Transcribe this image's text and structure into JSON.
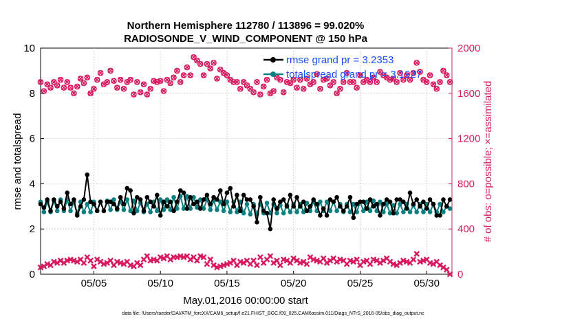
{
  "colors": {
    "rmse": "#000000",
    "spread": "#0b8080",
    "obs": "#d81b60",
    "legend_text": "#1a4dff",
    "axis": "#000000"
  },
  "chart_data": {
    "type": "line",
    "title_line1": "Northern Hemisphere 112780 / 113896 = 99.020%",
    "title_line2": "RADIOSONDE_V_WIND_COMPONENT @ 150 hPa",
    "xlabel": "May.01,2016 00:00:00 start",
    "ylabel_left": "rmse and totalspread",
    "ylabel_right": "# of obs: o=possible; ×=assimilated",
    "footnote": "data file: /Users/raeder/DAI/ATM_forcXX/CAM6_setup/f.e21.FHIST_BGC.f09_025.CAM6assim.011/Diags_NTrS_2016-05/obs_diag_output.nc",
    "xlim": [
      1.0,
      31.9
    ],
    "ylim_left": [
      0,
      10
    ],
    "ylim_right": [
      0,
      2000
    ],
    "x_ticks": [
      5,
      10,
      15,
      20,
      25,
      30
    ],
    "x_tick_labels": [
      "05/05",
      "05/10",
      "05/15",
      "05/20",
      "05/25",
      "05/30"
    ],
    "y_left_ticks": [
      0,
      2,
      4,
      6,
      8,
      10
    ],
    "y_left_tick_labels": [
      "0",
      "2",
      "4",
      "6",
      "8",
      "10"
    ],
    "y_right_ticks": [
      0,
      400,
      800,
      1200,
      1600,
      2000
    ],
    "y_right_tick_labels": [
      "0",
      "400",
      "800",
      "1200",
      "1600",
      "2000"
    ],
    "legend": {
      "rmse_label": "rmse grand pr = 3.2353",
      "spread_label": "totalspread grand pr = 3.1927",
      "placement": "top-right"
    },
    "x": [
      1.0,
      1.25,
      1.5,
      1.75,
      2.0,
      2.25,
      2.5,
      2.75,
      3.0,
      3.25,
      3.5,
      3.75,
      4.0,
      4.25,
      4.5,
      4.75,
      5.0,
      5.25,
      5.5,
      5.75,
      6.0,
      6.25,
      6.5,
      6.75,
      7.0,
      7.25,
      7.5,
      7.75,
      8.0,
      8.25,
      8.5,
      8.75,
      9.0,
      9.25,
      9.5,
      9.75,
      10.0,
      10.25,
      10.5,
      10.75,
      11.0,
      11.25,
      11.5,
      11.75,
      12.0,
      12.25,
      12.5,
      12.75,
      13.0,
      13.25,
      13.5,
      13.75,
      14.0,
      14.25,
      14.5,
      14.75,
      15.0,
      15.25,
      15.5,
      15.75,
      16.0,
      16.25,
      16.5,
      16.75,
      17.0,
      17.25,
      17.5,
      17.75,
      18.0,
      18.25,
      18.5,
      18.75,
      19.0,
      19.25,
      19.5,
      19.75,
      20.0,
      20.25,
      20.5,
      20.75,
      21.0,
      21.25,
      21.5,
      21.75,
      22.0,
      22.25,
      22.5,
      22.75,
      23.0,
      23.25,
      23.5,
      23.75,
      24.0,
      24.25,
      24.5,
      24.75,
      25.0,
      25.25,
      25.5,
      25.75,
      26.0,
      26.25,
      26.5,
      26.75,
      27.0,
      27.25,
      27.5,
      27.75,
      28.0,
      28.25,
      28.5,
      28.75,
      29.0,
      29.25,
      29.5,
      29.75,
      30.0,
      30.25,
      30.5,
      30.75,
      31.0,
      31.25,
      31.5,
      31.75
    ],
    "series": [
      {
        "name": "rmse",
        "values": [
          3.1,
          2.95,
          3.3,
          2.8,
          3.3,
          3.0,
          3.2,
          2.9,
          3.6,
          3.1,
          3.3,
          2.6,
          3.0,
          3.3,
          4.4,
          3.2,
          3.1,
          2.8,
          3.2,
          2.8,
          3.2,
          3.2,
          3.1,
          2.9,
          3.4,
          3.1,
          3.8,
          3.7,
          2.7,
          3.4,
          3.3,
          2.8,
          3.4,
          3.2,
          3.0,
          3.5,
          2.6,
          3.2,
          3.0,
          3.2,
          2.8,
          3.2,
          3.7,
          3.6,
          2.9,
          3.4,
          3.1,
          3.2,
          2.9,
          3.3,
          3.5,
          3.1,
          3.4,
          3.3,
          3.7,
          3.1,
          3.6,
          3.8,
          3.0,
          3.5,
          2.8,
          3.5,
          3.3,
          3.3,
          3.0,
          2.3,
          3.4,
          2.8,
          2.7,
          2.0,
          3.3,
          2.9,
          3.2,
          3.3,
          3.0,
          3.5,
          3.0,
          3.4,
          3.0,
          3.2,
          2.8,
          3.0,
          3.3,
          3.1,
          2.6,
          2.9,
          2.6,
          3.3,
          3.2,
          3.4,
          3.0,
          2.8,
          3.0,
          3.4,
          2.5,
          3.1,
          3.2,
          3.2,
          2.9,
          3.3,
          3.0,
          3.1,
          2.6,
          3.1,
          3.3,
          3.2,
          2.7,
          3.3,
          3.3,
          3.2,
          2.9,
          3.6,
          3.1,
          3.3,
          3.0,
          3.2,
          2.9,
          3.3,
          3.1,
          2.6,
          2.6,
          3.3,
          3.0,
          3.3
        ],
        "color": "#000000"
      },
      {
        "name": "totalspread",
        "values": [
          3.2,
          2.75,
          3.2,
          2.75,
          3.25,
          2.8,
          3.3,
          2.8,
          3.3,
          2.8,
          3.2,
          2.7,
          3.2,
          2.75,
          3.1,
          2.75,
          3.2,
          2.8,
          3.2,
          2.8,
          3.25,
          2.85,
          3.3,
          2.85,
          3.2,
          2.85,
          3.3,
          2.8,
          3.25,
          2.8,
          3.15,
          2.75,
          3.1,
          2.75,
          3.2,
          2.8,
          3.3,
          2.85,
          3.3,
          2.85,
          3.4,
          2.9,
          3.45,
          2.9,
          3.45,
          2.9,
          3.4,
          2.95,
          3.3,
          2.9,
          3.3,
          2.85,
          3.25,
          2.85,
          3.2,
          2.8,
          3.2,
          2.75,
          3.2,
          2.75,
          3.2,
          2.7,
          3.1,
          2.65,
          3.1,
          2.65,
          3.1,
          2.7,
          3.15,
          2.7,
          3.1,
          2.7,
          3.05,
          2.7,
          3.05,
          2.75,
          3.1,
          2.75,
          3.1,
          2.75,
          3.15,
          2.8,
          3.2,
          2.8,
          3.2,
          2.8,
          3.2,
          2.8,
          3.2,
          2.8,
          3.1,
          2.75,
          3.1,
          2.75,
          3.1,
          2.75,
          3.2,
          2.8,
          3.2,
          2.8,
          3.25,
          2.8,
          3.2,
          2.75,
          3.1,
          2.7,
          3.05,
          2.7,
          3.1,
          2.75,
          3.1,
          2.75,
          3.05,
          2.75,
          3.1,
          2.75,
          3.1,
          2.75,
          3.1,
          2.75,
          3.1,
          2.75,
          3.0,
          2.9
        ],
        "color": "#0b8080"
      },
      {
        "name": "obs_possible",
        "values": [
          1700,
          1620,
          1680,
          1650,
          1700,
          1670,
          1720,
          1650,
          1700,
          1650,
          1600,
          1660,
          1730,
          1690,
          1740,
          1600,
          1640,
          1720,
          1780,
          1680,
          1700,
          1800,
          1710,
          1650,
          1720,
          1640,
          1700,
          1720,
          1590,
          1700,
          1610,
          1680,
          1590,
          1640,
          1710,
          1700,
          1710,
          1620,
          1720,
          1690,
          1740,
          1800,
          1700,
          1760,
          1830,
          1760,
          1920,
          1890,
          1860,
          1760,
          1860,
          1820,
          1870,
          1730,
          1810,
          1780,
          1760,
          1720,
          1700,
          1700,
          1640,
          1700,
          1670,
          1640,
          1610,
          1700,
          1590,
          1660,
          1720,
          1600,
          1620,
          1740,
          1720,
          1610,
          1700,
          1690,
          1720,
          1650,
          1720,
          1640,
          1730,
          1680,
          1700,
          1770,
          1640,
          1720,
          1730,
          1670,
          1700,
          1600,
          1640,
          1700,
          1780,
          1700,
          1700,
          1650,
          1760,
          1700,
          1720,
          1700,
          1740,
          1700,
          1790,
          1760,
          1740,
          1720,
          1730,
          1700,
          1780,
          1720,
          1760,
          1720,
          1780,
          1870,
          1790,
          1720,
          1700,
          1760,
          1680,
          1640,
          1700,
          1800,
          1760,
          1700
        ],
        "color": "#d81b60"
      },
      {
        "name": "obs_assimilated",
        "values": [
          60,
          70,
          90,
          80,
          110,
          100,
          120,
          100,
          120,
          130,
          120,
          110,
          130,
          100,
          150,
          120,
          70,
          130,
          110,
          90,
          100,
          120,
          80,
          110,
          100,
          90,
          110,
          80,
          70,
          100,
          80,
          130,
          160,
          120,
          130,
          120,
          150,
          140,
          160,
          130,
          150,
          150,
          160,
          150,
          160,
          130,
          150,
          120,
          160,
          150,
          90,
          130,
          80,
          60,
          70,
          80,
          90,
          100,
          120,
          80,
          110,
          100,
          120,
          90,
          120,
          80,
          150,
          100,
          130,
          160,
          100,
          120,
          80,
          130,
          120,
          100,
          140,
          120,
          100,
          110,
          90,
          150,
          130,
          120,
          110,
          140,
          100,
          120,
          140,
          110,
          130,
          120,
          90,
          120,
          110,
          130,
          80,
          110,
          120,
          90,
          130,
          120,
          100,
          120,
          140,
          110,
          90,
          80,
          100,
          120,
          110,
          100,
          130,
          180,
          110,
          120,
          130,
          100,
          90,
          110,
          80,
          60,
          40,
          0
        ],
        "color": "#d81b60"
      }
    ]
  }
}
